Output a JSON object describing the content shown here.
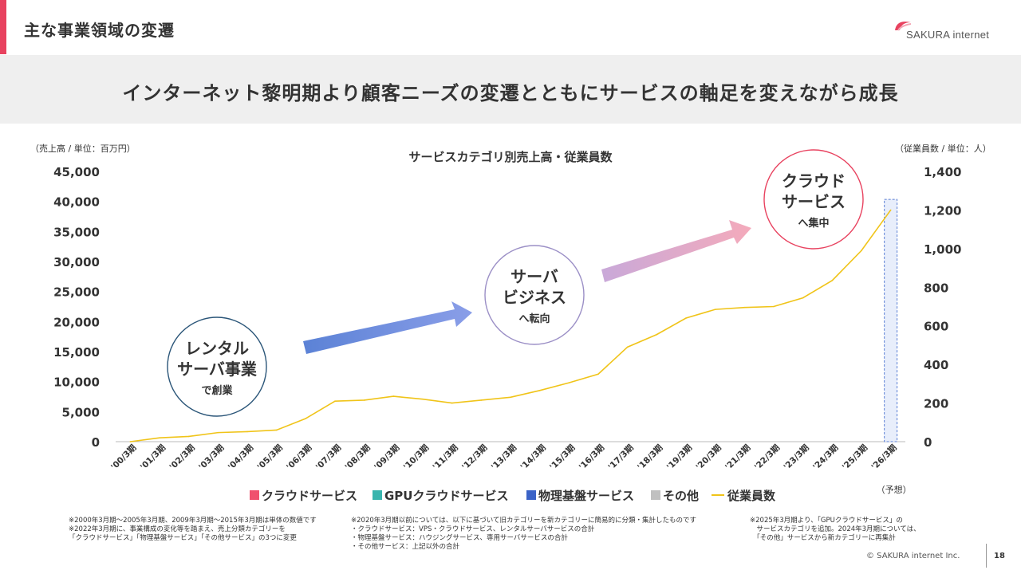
{
  "header": {
    "title": "主な事業領域の変遷",
    "logo_text": "SAKURA internet",
    "banner": "インターネット黎明期より顧客ニーズの変遷とともにサービスの軸足を変えながら成長",
    "accent_color": "#e8425f"
  },
  "chart_data": {
    "type": "bar",
    "stacked": true,
    "title": "サービスカテゴリ別売上高・従業員数",
    "y_left_label": "（売上高 / 単位：百万円）",
    "y_right_label": "（従業員数 / 単位：人）",
    "ylim_left": [
      0,
      45000
    ],
    "ylim_right": [
      0,
      1400
    ],
    "y_left_ticks": [
      "0",
      "5,000",
      "10,000",
      "15,000",
      "20,000",
      "25,000",
      "30,000",
      "35,000",
      "40,000",
      "45,000"
    ],
    "y_right_ticks": [
      "0",
      "200",
      "400",
      "600",
      "800",
      "1,000",
      "1,200",
      "1,400"
    ],
    "categories": [
      "'00/3期",
      "'01/3期",
      "'02/3期",
      "'03/3期",
      "'04/3期",
      "'05/3期",
      "'06/3期",
      "'07/3期",
      "'08/3期",
      "'09/3期",
      "'10/3期",
      "'11/3期",
      "'12/3期",
      "'13/3期",
      "'14/3期",
      "'15/3期",
      "'16/3期",
      "'17/3期",
      "'18/3期",
      "'19/3期",
      "'20/3期",
      "'21/3期",
      "'22/3期",
      "'23/3期",
      "'24/3期",
      "'25/3期",
      "'26/3期"
    ],
    "forecast_label": "（予想）",
    "series": [
      {
        "name": "クラウドサービス",
        "color": "#f0506e",
        "values": [
          0,
          0,
          0,
          0,
          0,
          0,
          0,
          0,
          0,
          0,
          0,
          0,
          0,
          0,
          0,
          0,
          0,
          0,
          0,
          0,
          0,
          0,
          0,
          0,
          0,
          0,
          0
        ]
      },
      {
        "name": "GPUクラウドサービス",
        "color": "#39b5ae",
        "values": [
          0,
          0,
          0,
          0,
          0,
          0,
          0,
          0,
          0,
          0,
          0,
          0,
          0,
          0,
          0,
          0,
          0,
          0,
          0,
          0,
          0,
          0,
          0,
          0,
          0,
          0,
          0
        ]
      },
      {
        "name": "物理基盤サービス",
        "color": "#3b63c7",
        "values": [
          0,
          0,
          0,
          0,
          0,
          0,
          0,
          0,
          0,
          0,
          0,
          0,
          0,
          0,
          0,
          0,
          0,
          0,
          0,
          0,
          0,
          0,
          0,
          0,
          0,
          0,
          0
        ]
      },
      {
        "name": "その他",
        "color": "#c0c0c0",
        "values": [
          0,
          0,
          0,
          0,
          0,
          0,
          0,
          0,
          0,
          0,
          0,
          0,
          0,
          0,
          0,
          0,
          0,
          0,
          0,
          0,
          0,
          0,
          0,
          0,
          0,
          0,
          0
        ]
      }
    ],
    "line": {
      "name": "従業員数",
      "color": "#f0c419",
      "values": [
        0,
        20,
        27,
        47,
        52,
        60,
        120,
        210,
        215,
        235,
        220,
        200,
        215,
        230,
        265,
        305,
        350,
        490,
        555,
        640,
        685,
        695,
        700,
        745,
        835,
        990,
        1200
      ]
    },
    "annotations": [
      {
        "title_lines": [
          "レンタル",
          "サーバ事業"
        ],
        "sub": "で創業",
        "border": "#2a5578"
      },
      {
        "title_lines": [
          "サーバ",
          "ビジネス"
        ],
        "sub": "へ転向",
        "border": "#9b8fc6"
      },
      {
        "title_lines": [
          "クラウド",
          "サービス"
        ],
        "sub": "へ集中",
        "border": "#e8425f"
      }
    ]
  },
  "notes": {
    "left": "※2000年3月期～2005年3月期、2009年3月期～2015年3月期は単体の数値です\n※2022年3月期に、事業構成の変化等を踏まえ、売上分類カテゴリーを\n「クラウドサービス」「物理基盤サービス」「その他サービス」の3つに変更",
    "middle": "※2020年3月期以前については、以下に基づいて旧カテゴリーを新カテゴリーに簡易的に分類・集計したものです\n・クラウドサービス：VPS・クラウドサービス、レンタルサーバサービスの合計\n・物理基盤サービス：ハウジングサービス、専用サーバサービスの合計\n・その他サービス：上記以外の合計",
    "right": "※2025年3月期より、「GPUクラウドサービス」の\n　サービスカテゴリを追加。2024年3月期については、\n　「その他」サービスから新カテゴリーに再集計"
  },
  "footer": {
    "copyright": "© SAKURA internet Inc.",
    "page": "18"
  }
}
